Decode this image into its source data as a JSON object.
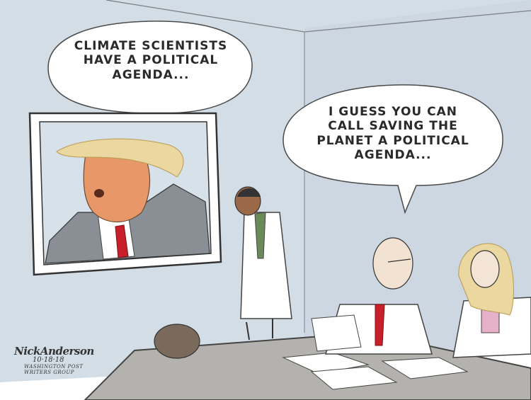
{
  "cartoon": {
    "left_bubble": {
      "lines": [
        "CLIMATE SCIENTISTS",
        "HAVE A POLITICAL",
        "AGENDA..."
      ]
    },
    "right_bubble": {
      "lines": [
        "I GUESS YOU CAN",
        "CALL SAVING THE",
        "PLANET A POLITICAL",
        "AGENDA..."
      ]
    },
    "signature": {
      "name": "NickAnderson",
      "date": "10·18·18",
      "line1": "WASHINGTON POST",
      "line2": "WRITERS GROUP"
    }
  },
  "colors": {
    "wall": "#d3dde6",
    "wall_shade": "#c3d0da",
    "table": "#b4b2ae",
    "ink": "#3a3a3a",
    "tie_red": "#c8202a",
    "hair_blonde": "#ead8a0",
    "face_orange": "#e89868",
    "suit_gray": "#8a8f95",
    "coat_white": "#ffffff"
  },
  "icons": [
    "tv-screen",
    "speech-bubble"
  ]
}
